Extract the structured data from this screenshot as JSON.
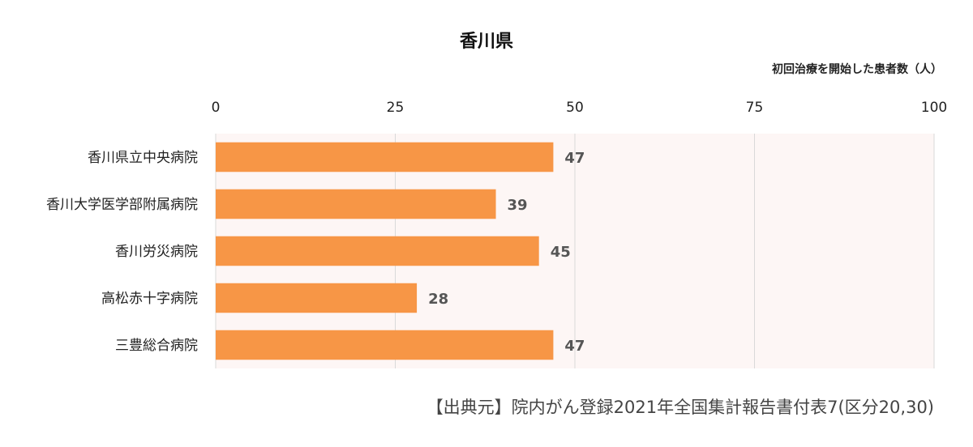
{
  "chart_data": {
    "type": "bar",
    "orientation": "horizontal",
    "title": "香川県",
    "unit_label": "初回治療を開始した患者数（人）",
    "xlim": [
      0,
      100
    ],
    "ticks": [
      0,
      25,
      50,
      75,
      100
    ],
    "categories": [
      "香川県立中央病院",
      "香川大学医学部附属病院",
      "香川労災病院",
      "高松赤十字病院",
      "三豊総合病院"
    ],
    "values": [
      47,
      39,
      45,
      28,
      47
    ],
    "grid": true,
    "bar_color": "#f79646",
    "plot_background": "#fdf6f5",
    "value_label_color": "#555555"
  },
  "source": "【出典元】院内がん登録2021年全国集計報告書付表7(区分20,30)"
}
